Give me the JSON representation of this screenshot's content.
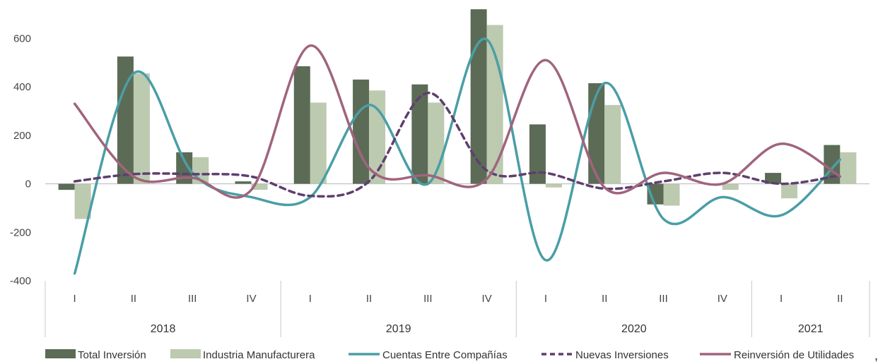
{
  "chart_data": {
    "type": "bar",
    "title": "",
    "xlabel": "",
    "ylabel": "",
    "ylim": [
      -400,
      700
    ],
    "yticks": [
      600,
      400,
      200,
      0,
      -200,
      -400
    ],
    "grid": false,
    "legend_position": "bottom",
    "categories": [
      "I",
      "II",
      "III",
      "IV",
      "I",
      "II",
      "III",
      "IV",
      "I",
      "II",
      "III",
      "IV",
      "I",
      "II"
    ],
    "groups": [
      {
        "label": "2018",
        "count": 4
      },
      {
        "label": "2019",
        "count": 4
      },
      {
        "label": "2020",
        "count": 4
      },
      {
        "label": "2021",
        "count": 2
      }
    ],
    "series": [
      {
        "name": "Total Inversión",
        "type": "bar",
        "color": "#5b6b56",
        "values": [
          -25,
          525,
          130,
          10,
          485,
          430,
          410,
          720,
          245,
          415,
          -85,
          0,
          45,
          160
        ]
      },
      {
        "name": "Industria Manufacturera",
        "type": "bar",
        "color": "#bccab0",
        "values": [
          -145,
          455,
          110,
          -25,
          335,
          385,
          335,
          655,
          -15,
          325,
          -90,
          -25,
          -60,
          130
        ]
      },
      {
        "name": "Cuentas Entre Compañías",
        "type": "line",
        "color": "#4a9ea6",
        "dash": "solid",
        "values": [
          -370,
          455,
          45,
          -55,
          -55,
          325,
          0,
          595,
          -315,
          415,
          -145,
          -55,
          -130,
          100
        ]
      },
      {
        "name": "Nuevas Inversiones",
        "type": "line",
        "color": "#5e3f6e",
        "dash": "dashed",
        "values": [
          10,
          40,
          40,
          30,
          -50,
          10,
          375,
          55,
          45,
          -20,
          10,
          45,
          0,
          35
        ]
      },
      {
        "name": "Reinversión de Utilidades",
        "type": "line",
        "color": "#a0647e",
        "dash": "solid",
        "values": [
          330,
          30,
          25,
          -25,
          570,
          65,
          35,
          20,
          510,
          -15,
          45,
          0,
          165,
          30
        ]
      }
    ]
  }
}
